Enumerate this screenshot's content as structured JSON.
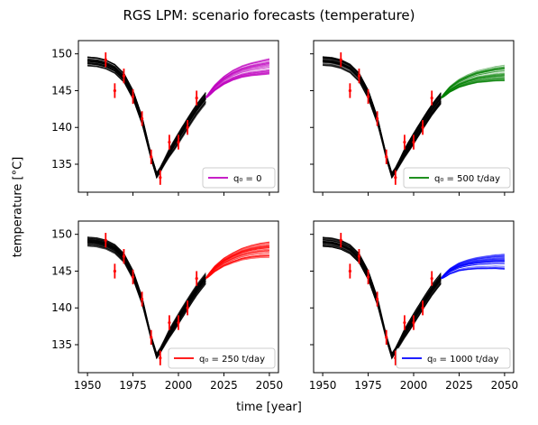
{
  "figure": {
    "title": "RGS LPM: scenario forecasts (temperature)",
    "xlabel": "time [year]",
    "ylabel": "temperature [°C]"
  },
  "chart_data": {
    "type": "line",
    "ylim": [
      131.2,
      151.8
    ],
    "xlim": [
      1945,
      2055
    ],
    "xticks": [
      1950,
      1975,
      2000,
      2025,
      2050
    ],
    "yticks": [
      135,
      140,
      145,
      150
    ],
    "grid": false,
    "history_color": "#000000",
    "observations": {
      "color": "#ff0000",
      "x": [
        1960,
        1965,
        1970,
        1975,
        1980,
        1985,
        1990,
        1995,
        2000,
        2005,
        2010
      ],
      "y": [
        149.2,
        145.0,
        147.0,
        144.2,
        141.2,
        136.0,
        133.2,
        138.0,
        138.0,
        140.0,
        144.0
      ]
    },
    "history_mean": {
      "x": [
        1950,
        1955,
        1960,
        1965,
        1970,
        1975,
        1980,
        1985,
        1988,
        1990,
        1995,
        2000,
        2005,
        2010,
        2015
      ],
      "y": [
        149.0,
        148.9,
        148.6,
        148.0,
        146.8,
        144.5,
        141.0,
        136.0,
        133.5,
        134.2,
        136.5,
        138.5,
        140.5,
        142.4,
        144.0
      ]
    },
    "panels": [
      {
        "legend": "q₀ = 0",
        "legend_location": "lower-right",
        "color": "#bf00bf",
        "forecast_x": [
          2015,
          2020,
          2025,
          2030,
          2035,
          2040,
          2045,
          2050
        ],
        "forecast_mean": [
          144.0,
          145.4,
          146.4,
          147.1,
          147.6,
          147.9,
          148.1,
          148.3
        ]
      },
      {
        "legend": "q₀ = 500 t/day",
        "legend_location": "lower-right",
        "color": "#008000",
        "forecast_x": [
          2015,
          2020,
          2025,
          2030,
          2035,
          2040,
          2045,
          2050
        ],
        "forecast_mean": [
          144.0,
          145.2,
          146.0,
          146.5,
          146.9,
          147.1,
          147.3,
          147.4
        ]
      },
      {
        "legend": "q₀ = 250 t/day",
        "legend_location": "lower-right",
        "color": "#ff0000",
        "forecast_x": [
          2015,
          2020,
          2025,
          2030,
          2035,
          2040,
          2045,
          2050
        ],
        "forecast_mean": [
          144.0,
          145.3,
          146.2,
          146.8,
          147.3,
          147.6,
          147.8,
          147.9
        ]
      },
      {
        "legend": "q₀ = 1000 t/day",
        "legend_location": "lower-right",
        "color": "#0000ff",
        "forecast_x": [
          2015,
          2020,
          2025,
          2030,
          2035,
          2040,
          2045,
          2050
        ],
        "forecast_mean": [
          144.0,
          145.0,
          145.6,
          145.9,
          146.1,
          146.2,
          146.3,
          146.3
        ]
      }
    ]
  }
}
